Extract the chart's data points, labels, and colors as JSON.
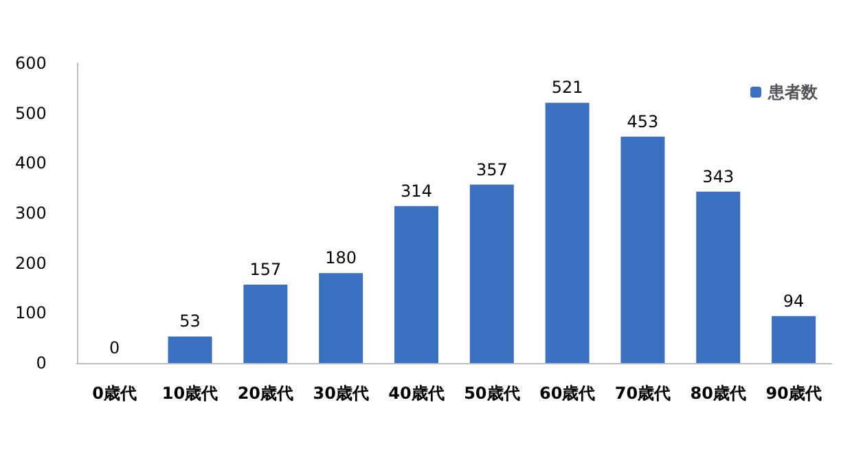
{
  "chart_data": {
    "type": "bar",
    "categories": [
      "0歳代",
      "10歳代",
      "20歳代",
      "30歳代",
      "40歳代",
      "50歳代",
      "60歳代",
      "70歳代",
      "80歳代",
      "90歳代"
    ],
    "series": [
      {
        "name": "患者数",
        "color": "#3b6fbf",
        "values": [
          0,
          53,
          157,
          180,
          314,
          357,
          521,
          453,
          343,
          94
        ]
      }
    ],
    "ylim": [
      0,
      600
    ],
    "yticks": [
      0,
      100,
      200,
      300,
      400,
      500,
      600
    ],
    "grid": false,
    "legend": "top right",
    "data_labels": true
  }
}
